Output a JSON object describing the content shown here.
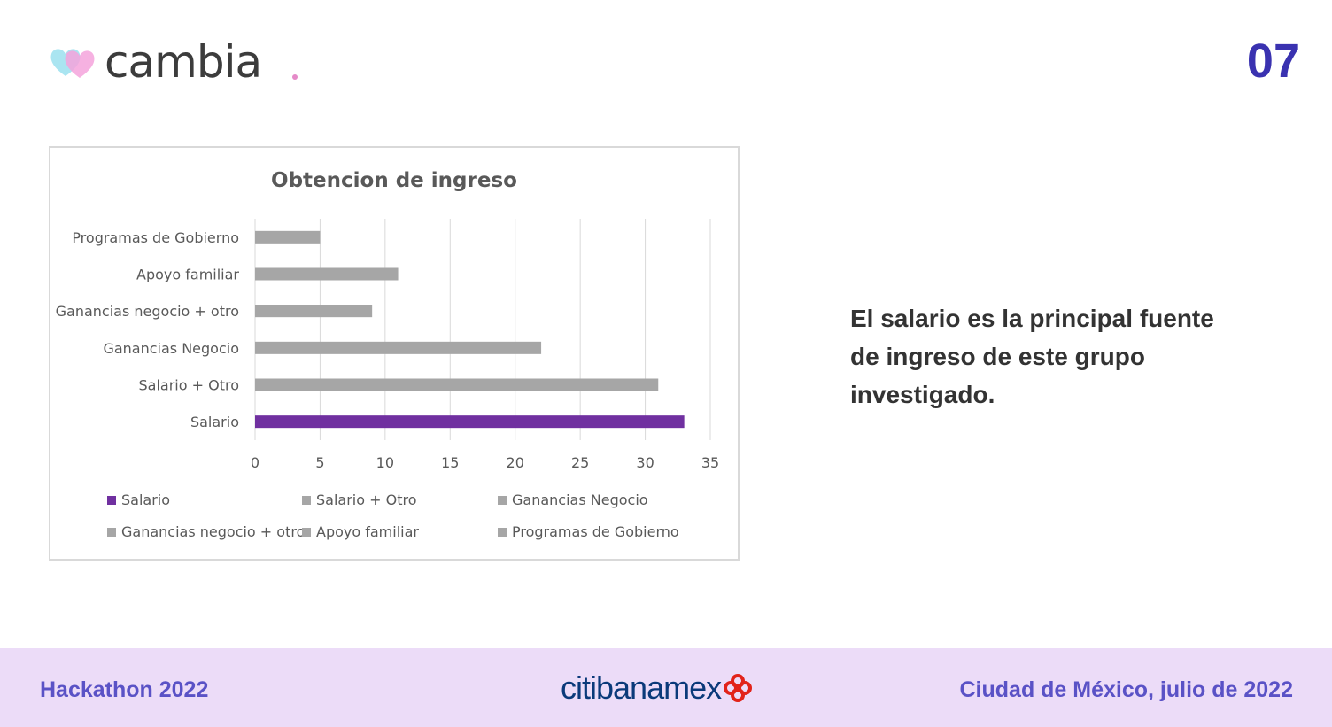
{
  "header": {
    "brand_name": "cambia",
    "slide_number": "07"
  },
  "chart_data": {
    "type": "bar",
    "orientation": "horizontal",
    "title": "Obtencion de ingreso",
    "categories": [
      "Programas de Gobierno",
      "Apoyo familiar",
      "Ganancias negocio + otro",
      "Ganancias Negocio",
      "Salario + Otro",
      "Salario"
    ],
    "values": [
      5,
      11,
      9,
      22,
      31,
      33
    ],
    "colors": [
      "#a6a6a6",
      "#a6a6a6",
      "#a6a6a6",
      "#a6a6a6",
      "#a6a6a6",
      "#7030a0"
    ],
    "xlim": [
      0,
      35
    ],
    "xticks": [
      "0",
      "5",
      "10",
      "15",
      "20",
      "25",
      "30",
      "35"
    ],
    "grid": true,
    "legend_position": "bottom",
    "legend": [
      {
        "label": "Salario",
        "color": "#7030a0"
      },
      {
        "label": "Salario + Otro",
        "color": "#a6a6a6"
      },
      {
        "label": "Ganancias Negocio",
        "color": "#a6a6a6"
      },
      {
        "label": "Ganancias negocio + otro",
        "color": "#a6a6a6"
      },
      {
        "label": "Apoyo familiar",
        "color": "#a6a6a6"
      },
      {
        "label": "Programas de Gobierno",
        "color": "#a6a6a6"
      }
    ]
  },
  "caption": {
    "text": "El salario es la principal fuente de ingreso de este grupo investigado."
  },
  "footer": {
    "left": "Hackathon 2022",
    "brand": "citibanamex",
    "right": "Ciudad de México, julio de 2022"
  }
}
